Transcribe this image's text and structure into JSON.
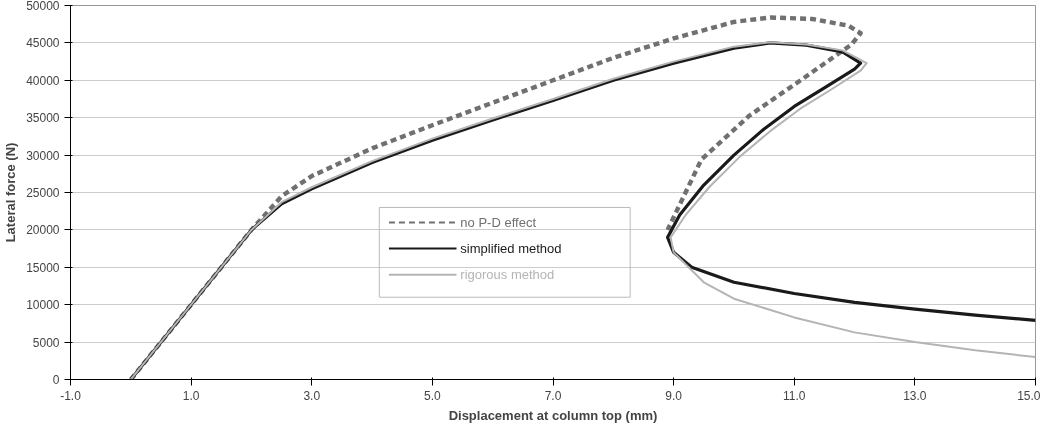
{
  "chart_data": {
    "type": "line",
    "xlabel": "Displacement at column top (mm)",
    "ylabel": "Lateral force (N)",
    "xlim": [
      -1,
      15
    ],
    "ylim": [
      0,
      50000
    ],
    "xticks": [
      {
        "value": -1,
        "label": "-1.0"
      },
      {
        "value": 1,
        "label": "1.0"
      },
      {
        "value": 3,
        "label": "3.0"
      },
      {
        "value": 5,
        "label": "5.0"
      },
      {
        "value": 7,
        "label": "7.0"
      },
      {
        "value": 9,
        "label": "9.0"
      },
      {
        "value": 11,
        "label": "11.0"
      },
      {
        "value": 13,
        "label": "13.0"
      },
      {
        "value": 15,
        "label": "15.0"
      }
    ],
    "yticks": [
      0,
      5000,
      10000,
      15000,
      20000,
      25000,
      30000,
      35000,
      40000,
      45000,
      50000
    ],
    "grid": "y",
    "legend": "bottom",
    "marker": "none",
    "series": [
      {
        "name": "no P-D effect",
        "color": "#707070",
        "line_style": "dashed",
        "x": [
          0,
          1,
          2,
          2.5,
          3,
          4,
          5,
          6,
          7,
          8,
          9,
          10,
          10.6,
          11.3,
          11.9,
          12.1,
          11.95,
          11.16,
          10.26,
          9.46,
          8.9
        ],
        "values": [
          0,
          10000,
          20000,
          24500,
          27200,
          30900,
          34000,
          37000,
          40000,
          43000,
          45600,
          47800,
          48400,
          48200,
          47300,
          46300,
          44800,
          40300,
          35300,
          29400,
          20000
        ]
      },
      {
        "name": "simplified method",
        "color": "#1a1a1a",
        "line_style": "solid",
        "x": [
          0,
          1,
          2,
          2.5,
          3,
          4,
          5,
          6,
          7,
          8,
          9,
          10,
          10.6,
          11.2,
          11.8,
          12.1,
          12.0,
          11.5,
          11,
          10.5,
          10,
          9.5,
          9.1,
          8.9,
          9.0,
          9.3,
          10,
          11,
          12,
          13,
          14,
          15
        ],
        "values": [
          0,
          10000,
          20000,
          23500,
          25500,
          29000,
          32000,
          34700,
          37300,
          40000,
          42300,
          44300,
          45000,
          44700,
          43800,
          42300,
          41500,
          39000,
          36500,
          33500,
          30000,
          26000,
          22000,
          19000,
          17000,
          15000,
          13000,
          11500,
          10300,
          9400,
          8600,
          7900
        ]
      },
      {
        "name": "rigorous method",
        "color": "#b4b4b4",
        "line_style": "solid",
        "x": [
          0,
          1,
          2,
          2.5,
          3,
          4,
          5,
          6,
          7,
          8,
          9,
          10,
          10.6,
          11.2,
          11.8,
          12.2,
          12.1,
          11.6,
          11.1,
          10.6,
          10.1,
          9.6,
          9.2,
          8.95,
          9.0,
          9.5,
          10,
          11,
          12,
          13,
          14,
          15
        ],
        "values": [
          0,
          10000,
          20000,
          23700,
          25700,
          29200,
          32200,
          34900,
          37500,
          40200,
          42500,
          44500,
          45100,
          44800,
          44000,
          42300,
          41300,
          38700,
          36200,
          33200,
          29800,
          25800,
          22000,
          19000,
          17000,
          13000,
          10800,
          8300,
          6300,
          5000,
          3900,
          3000
        ]
      }
    ]
  }
}
